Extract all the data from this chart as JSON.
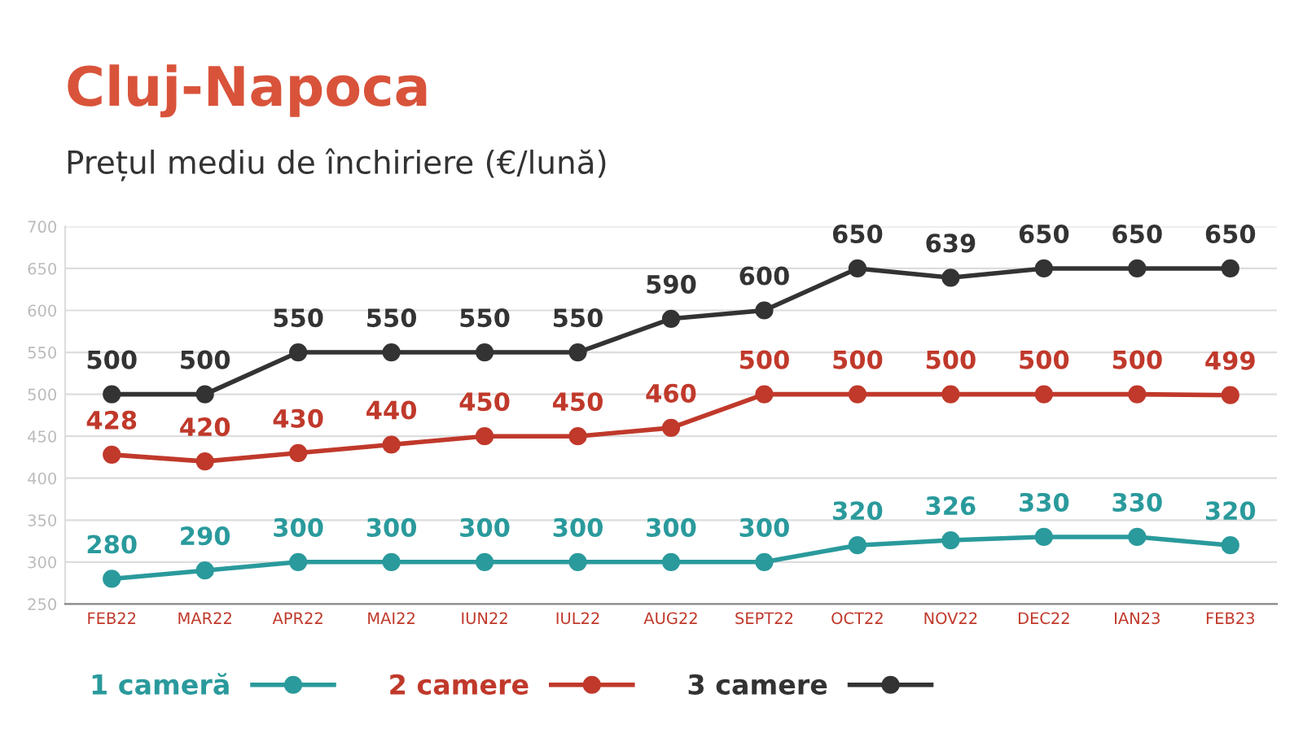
{
  "chart_data": {
    "type": "line",
    "title": "Cluj-Napoca",
    "subtitle": "Prețul mediu de închiriere (€/lună)",
    "categories": [
      "FEB22",
      "MAR22",
      "APR22",
      "MAI22",
      "IUN22",
      "IUL22",
      "AUG22",
      "SEPT22",
      "OCT22",
      "NOV22",
      "DEC22",
      "IAN23",
      "FEB23"
    ],
    "series": [
      {
        "name": "1 cameră",
        "color": "#2a9a9c",
        "values": [
          280,
          290,
          300,
          300,
          300,
          300,
          300,
          300,
          320,
          326,
          330,
          330,
          320
        ]
      },
      {
        "name": "2 camere",
        "color": "#c0392b",
        "values": [
          428,
          420,
          430,
          440,
          450,
          450,
          460,
          500,
          500,
          500,
          500,
          500,
          499
        ]
      },
      {
        "name": "3 camere",
        "color": "#333333",
        "values": [
          500,
          500,
          550,
          550,
          550,
          550,
          590,
          600,
          650,
          639,
          650,
          650,
          650
        ]
      }
    ],
    "ylim": [
      250,
      700
    ],
    "yticks": [
      250,
      300,
      350,
      400,
      450,
      500,
      550,
      600,
      650,
      700
    ],
    "grid": "y",
    "legend": "bottom",
    "marker": "circle",
    "line_style": "solid",
    "data_labels": true
  }
}
